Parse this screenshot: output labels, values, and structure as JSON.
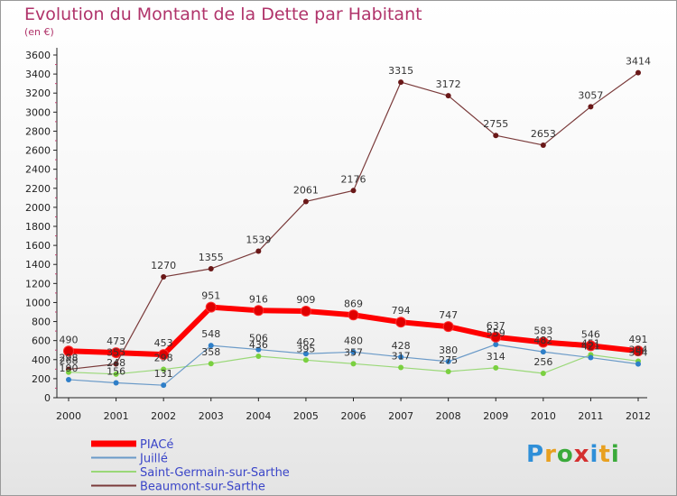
{
  "title": "Evolution du Montant de la Dette par Habitant",
  "subtitle": "(en €)",
  "logo": {
    "text": "Proxiti",
    "colors": [
      "#2f8fd8",
      "#e8a020",
      "#3aaa3a",
      "#d43030",
      "#2f8fd8",
      "#e8a020",
      "#3aaa3a"
    ]
  },
  "chart_data": {
    "type": "line",
    "x": [
      "2000",
      "2001",
      "2002",
      "2003",
      "2004",
      "2005",
      "2006",
      "2007",
      "2008",
      "2009",
      "2010",
      "2011",
      "2012"
    ],
    "ylim": [
      0,
      3600
    ],
    "yticks": [
      0,
      200,
      400,
      600,
      800,
      1000,
      1200,
      1400,
      1600,
      1800,
      2000,
      2200,
      2400,
      2600,
      2800,
      3000,
      3200,
      3400,
      3600
    ],
    "grid": false,
    "legend_position": "bottom-left",
    "series": [
      {
        "name": "PIACé",
        "color": "#ff0000",
        "width": 6,
        "point_color": "#e00000",
        "values": [
          490,
          473,
          453,
          951,
          916,
          909,
          869,
          794,
          747,
          637,
          583,
          546,
          491
        ]
      },
      {
        "name": "Juillé",
        "color": "#6a9ac8",
        "width": 1.2,
        "point_color": "#2f7fc8",
        "values": [
          190,
          156,
          131,
          548,
          506,
          462,
          480,
          428,
          380,
          559,
          482,
          421,
          354
        ]
      },
      {
        "name": "Saint-Germain-sur-Sarthe",
        "color": "#9ad878",
        "width": 1.2,
        "point_color": "#7ad040",
        "values": [
          268,
          248,
          298,
          358,
          436,
          395,
          357,
          317,
          275,
          314,
          256,
          451,
          384
        ]
      },
      {
        "name": "Beaumont-sur-Sarthe",
        "color": "#7a3a3a",
        "width": 1.2,
        "point_color": "#6a1818",
        "values": [
          298,
          355,
          1270,
          1355,
          1539,
          2061,
          2176,
          3315,
          3172,
          2755,
          2653,
          3057,
          3414
        ]
      }
    ]
  }
}
